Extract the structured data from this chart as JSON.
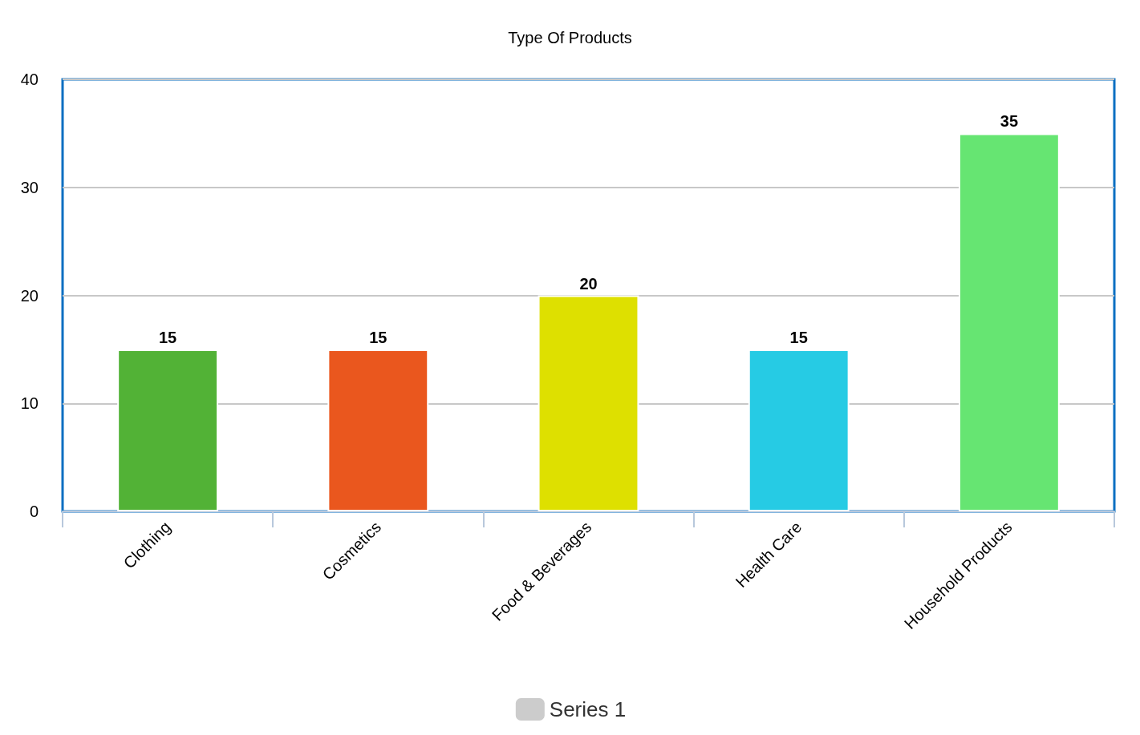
{
  "chart_data": {
    "type": "bar",
    "title": "Type Of Products",
    "categories": [
      "Clothing",
      "Cosmetics",
      "Food & Beverages",
      "Health Care",
      "Household Products"
    ],
    "series": [
      {
        "name": "Series 1",
        "color": "#cccccc",
        "colors": [
          "#52b236",
          "#ea571e",
          "#dee000",
          "#26cbe4",
          "#66e572"
        ],
        "values": [
          15,
          15,
          20,
          15,
          35
        ]
      }
    ],
    "ylim": [
      0,
      40
    ],
    "yticks": [
      0,
      10,
      20,
      30,
      40
    ],
    "grid": "y",
    "legend": "bottom",
    "data_labels": true
  }
}
